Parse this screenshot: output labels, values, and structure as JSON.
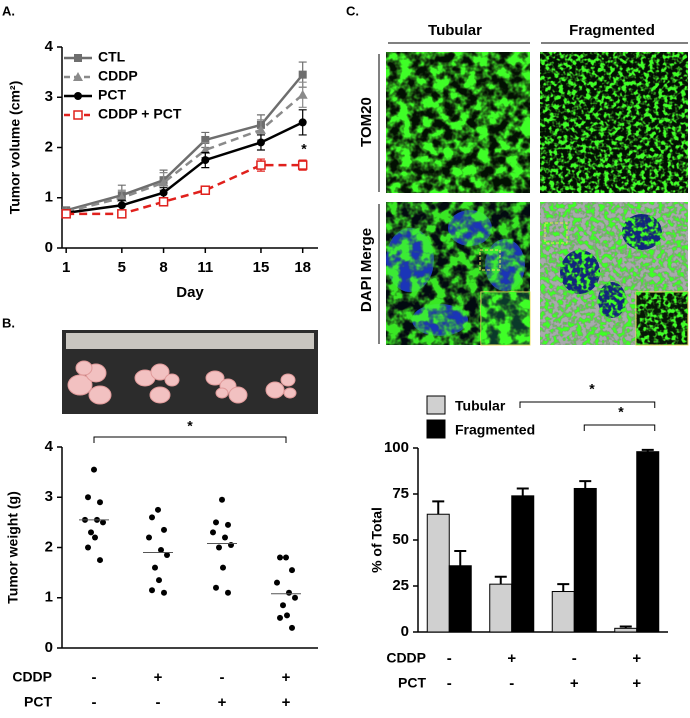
{
  "figure": {
    "panels": [
      "A.",
      "B.",
      "C."
    ],
    "columns": [
      "Tubular",
      "Fragmented"
    ],
    "rows": [
      "TOM20",
      "DAPI Merge"
    ]
  },
  "chart_data": [
    {
      "type": "line",
      "x_label": "Day",
      "y_label": "Tumor volume (cm²)",
      "x": [
        1,
        5,
        8,
        11,
        15,
        18
      ],
      "xlim": [
        0.7,
        19.1
      ],
      "xticks": [
        1,
        5,
        8,
        11,
        15,
        18
      ],
      "ylim": [
        0,
        4
      ],
      "yticks": [
        0,
        1,
        2,
        3,
        4
      ],
      "legend": "upper left",
      "series": [
        {
          "name": "CTL",
          "color": "#6e6e6e",
          "dashed": false,
          "marker": "square",
          "values": [
            0.75,
            1.05,
            1.35,
            2.15,
            2.45,
            3.45
          ],
          "errors": [
            0.05,
            0.2,
            0.2,
            0.15,
            0.2,
            0.25
          ]
        },
        {
          "name": "CDDP",
          "color": "#8a8a8a",
          "dashed": true,
          "marker": "triangle",
          "values": [
            0.72,
            1.0,
            1.3,
            1.95,
            2.35,
            3.05
          ],
          "errors": [
            0.05,
            0.15,
            0.2,
            0.15,
            0.2,
            0.25
          ]
        },
        {
          "name": "PCT",
          "color": "#000000",
          "dashed": false,
          "marker": "circle",
          "values": [
            0.7,
            0.85,
            1.1,
            1.75,
            2.1,
            2.5
          ],
          "errors": [
            0.05,
            0.1,
            0.1,
            0.15,
            0.15,
            0.25
          ]
        },
        {
          "name": "CDDP + PCT",
          "color": "#e0201c",
          "dashed": true,
          "marker": "open-square",
          "values": [
            0.68,
            0.68,
            0.92,
            1.15,
            1.65,
            1.65
          ],
          "errors": [
            0.05,
            0.05,
            0.05,
            0.08,
            0.12,
            0.1
          ]
        }
      ],
      "annotations": [
        "*"
      ]
    },
    {
      "type": "strip",
      "y_label": "Tumor weight (g)",
      "ylim": [
        0,
        4
      ],
      "yticks": [
        0,
        1,
        2,
        3,
        4
      ],
      "categories": [
        null,
        null,
        null,
        null
      ],
      "groups": [
        {
          "values": [
            3.55,
            3.0,
            2.9,
            2.55,
            2.55,
            2.5,
            2.3,
            2.2,
            2.0,
            1.75
          ],
          "mean": 2.55
        },
        {
          "values": [
            2.75,
            2.6,
            2.35,
            2.2,
            1.95,
            1.85,
            1.6,
            1.35,
            1.15,
            1.1
          ],
          "mean": 1.9
        },
        {
          "values": [
            2.95,
            2.5,
            2.45,
            2.3,
            2.2,
            2.05,
            2.0,
            1.6,
            1.2,
            1.1
          ],
          "mean": 2.08
        },
        {
          "values": [
            1.8,
            1.8,
            1.55,
            1.3,
            1.1,
            1.0,
            0.85,
            0.65,
            0.6,
            0.4
          ],
          "mean": 1.08
        }
      ],
      "conditions": [
        {
          "name": "CDDP",
          "values": [
            "-",
            "+",
            "-",
            "+"
          ]
        },
        {
          "name": "PCT",
          "values": [
            "-",
            "-",
            "+",
            "+"
          ]
        }
      ],
      "annotations": [
        "*"
      ]
    },
    {
      "type": "bar",
      "y_label": "% of Total",
      "ylim": [
        0,
        100
      ],
      "yticks": [
        0,
        25,
        50,
        75,
        100
      ],
      "categories": [
        null,
        null,
        null,
        null
      ],
      "series": [
        {
          "name": "Tubular",
          "color": "#d0d0d0",
          "values": [
            64,
            26,
            22,
            2
          ],
          "errors": [
            7,
            4,
            4,
            1
          ]
        },
        {
          "name": "Fragmented",
          "color": "#000000",
          "values": [
            36,
            74,
            78,
            98
          ],
          "errors": [
            8,
            4,
            4,
            1
          ]
        }
      ],
      "conditions": [
        {
          "name": "CDDP",
          "values": [
            "-",
            "+",
            "-",
            "+"
          ]
        },
        {
          "name": "PCT",
          "values": [
            "-",
            "-",
            "+",
            "+"
          ]
        }
      ],
      "annotations": [
        "*",
        "*"
      ]
    }
  ]
}
